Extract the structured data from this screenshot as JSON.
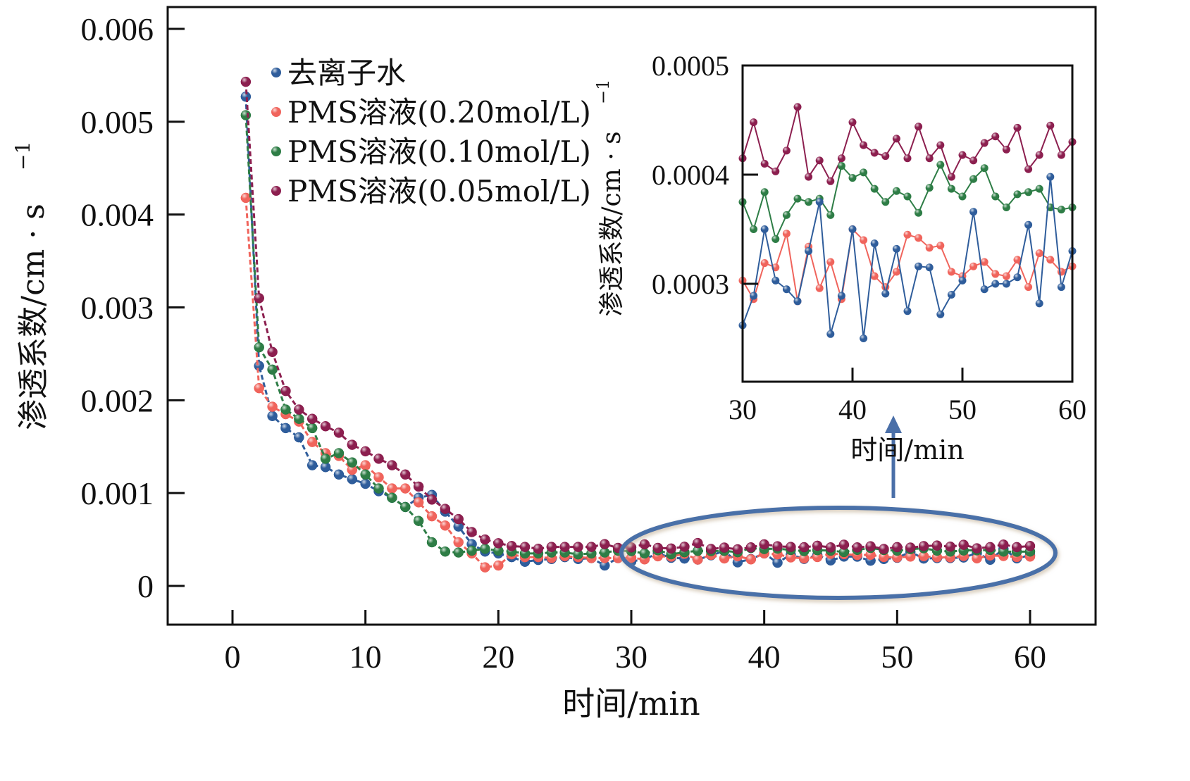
{
  "chart_data": [
    {
      "id": "main",
      "type": "line",
      "title": "",
      "xlabel": "时间/min",
      "ylabel": "渗透系数/cm · s",
      "ylabel_superscript": "−1",
      "xlim": [
        -5,
        65
      ],
      "ylim": [
        -0.0004,
        0.0062
      ],
      "xticks": [
        0,
        10,
        20,
        30,
        40,
        50,
        60
      ],
      "xtick_labels": [
        "0",
        "10",
        "20",
        "30",
        "40",
        "50",
        "60"
      ],
      "yticks": [
        0,
        0.001,
        0.002,
        0.003,
        0.004,
        0.005,
        0.006
      ],
      "ytick_labels": [
        "0",
        "0.001",
        "0.002",
        "0.003",
        "0.004",
        "0.005",
        "0.006"
      ],
      "grid": false,
      "legend_position": "top-left",
      "annotation": "ellipse highlighting 30–60 min region with arrow pointing to inset"
    },
    {
      "id": "inset",
      "type": "line",
      "title": "",
      "xlabel": "时间/min",
      "ylabel": "渗透系数/cm · s",
      "ylabel_superscript": "−1",
      "xlim": [
        30,
        60
      ],
      "ylim": [
        0.0002,
        0.0005
      ],
      "xticks": [
        30,
        40,
        50,
        60
      ],
      "xtick_labels": [
        "30",
        "40",
        "50",
        "60"
      ],
      "yticks": [
        0.0003,
        0.0004,
        0.0005
      ],
      "ytick_labels": [
        "0.0003",
        "0.0004",
        "0.0005"
      ],
      "grid": false,
      "position": "top-right inset"
    }
  ],
  "series": [
    {
      "name": "去离子水",
      "color": "#2f5d9b",
      "values": [
        0.00527,
        0.00237,
        0.00183,
        0.0017,
        0.0016,
        0.0013,
        0.00128,
        0.0012,
        0.00115,
        0.0011,
        0.00102,
        0.00095,
        0.00085,
        0.00095,
        0.00098,
        0.0008,
        0.00064,
        0.00045,
        0.00037,
        0.00035,
        0.00031,
        0.00026,
        0.00028,
        0.00029,
        0.00031,
        0.00029,
        0.0003,
        0.00022,
        0.0003,
        0.000262,
        0.000289,
        0.00035,
        0.000303,
        0.000295,
        0.000284,
        0.00033,
        0.000375,
        0.000254,
        0.000289,
        0.00035,
        0.00025,
        0.000337,
        0.000291,
        0.000332,
        0.000275,
        0.000316,
        0.000315,
        0.000272,
        0.00029,
        0.000303,
        0.000366,
        0.000295,
        0.0003,
        0.0003,
        0.000306,
        0.000354,
        0.000282,
        0.000398,
        0.000297,
        0.00033
      ]
    },
    {
      "name": "PMS溶液(0.20mol/L)",
      "color": "#f0645c",
      "values": [
        0.00418,
        0.00213,
        0.00193,
        0.00185,
        0.00177,
        0.00155,
        0.00143,
        0.0014,
        0.00125,
        0.0013,
        0.00117,
        0.00105,
        0.00105,
        0.0009,
        0.00075,
        0.00065,
        0.00047,
        0.00035,
        0.0002,
        0.00022,
        0.00034,
        0.00031,
        0.00031,
        0.0003,
        0.00032,
        0.00031,
        0.0003,
        0.0003,
        0.0003,
        0.000303,
        0.000286,
        0.000319,
        0.000315,
        0.000346,
        0.000284,
        0.000334,
        0.000296,
        0.00032,
        0.000286,
        0.00035,
        0.00034,
        0.000307,
        0.000297,
        0.000311,
        0.000345,
        0.000342,
        0.000333,
        0.000335,
        0.000311,
        0.000307,
        0.000316,
        0.00032,
        0.000309,
        0.000307,
        0.000322,
        0.000297,
        0.000328,
        0.000322,
        0.000311,
        0.000316
      ]
    },
    {
      "name": "PMS溶液(0.10mol/L)",
      "color": "#2e7d46",
      "values": [
        0.00507,
        0.00257,
        0.00233,
        0.0019,
        0.0018,
        0.0017,
        0.00137,
        0.00143,
        0.00133,
        0.0012,
        0.00105,
        0.00095,
        0.00085,
        0.0007,
        0.00047,
        0.00037,
        0.00036,
        0.00038,
        0.0004,
        0.00038,
        0.00037,
        0.00035,
        0.00035,
        0.00036,
        0.00036,
        0.00034,
        0.00035,
        0.00036,
        0.00038,
        0.000375,
        0.00035,
        0.000384,
        0.000341,
        0.000363,
        0.000378,
        0.000375,
        0.000378,
        0.000363,
        0.000408,
        0.000397,
        0.000402,
        0.000387,
        0.000375,
        0.000385,
        0.00038,
        0.000365,
        0.000388,
        0.000409,
        0.000387,
        0.00038,
        0.000396,
        0.000406,
        0.00038,
        0.00037,
        0.000382,
        0.000384,
        0.000387,
        0.00037,
        0.000368,
        0.00037
      ]
    },
    {
      "name": "PMS溶液(0.05mol/L)",
      "color": "#8c1f4f",
      "values": [
        0.00543,
        0.0031,
        0.00252,
        0.0021,
        0.0019,
        0.0018,
        0.00172,
        0.00165,
        0.00152,
        0.00145,
        0.00137,
        0.0013,
        0.0012,
        0.00107,
        0.00093,
        0.00083,
        0.00072,
        0.00058,
        0.0005,
        0.00046,
        0.00043,
        0.00042,
        0.0004,
        0.00042,
        0.00042,
        0.00042,
        0.00042,
        0.00045,
        0.00041,
        0.000415,
        0.000448,
        0.00041,
        0.000403,
        0.000422,
        0.000462,
        0.000398,
        0.000413,
        0.000394,
        0.000415,
        0.000448,
        0.000427,
        0.00042,
        0.000417,
        0.000433,
        0.000415,
        0.000444,
        0.000415,
        0.000427,
        0.000398,
        0.000418,
        0.000413,
        0.000429,
        0.000435,
        0.000423,
        0.000443,
        0.000405,
        0.000418,
        0.000445,
        0.000418,
        0.00043
      ]
    }
  ],
  "x_values_start": 1,
  "x_values_end": 60,
  "annotation_color": "#4a6fa8"
}
